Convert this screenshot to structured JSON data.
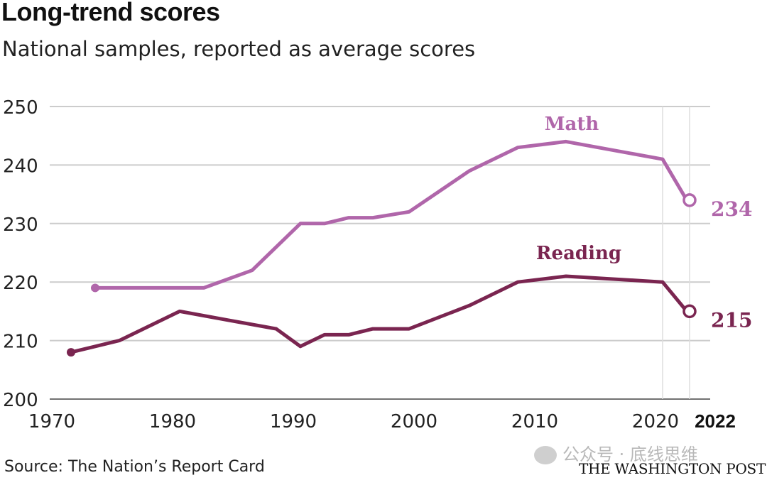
{
  "header": {
    "title": "Long-trend scores",
    "subtitle": "National samples, reported as average scores"
  },
  "footer": {
    "source": "Source: The Nation’s Report Card",
    "credit": "THE WASHINGTON POST",
    "watermark": "公众号 · 底线思维"
  },
  "colors": {
    "math": "#b066aa",
    "reading": "#7a2550",
    "grid": "#cccccc"
  },
  "chart_data": {
    "type": "line",
    "title": "Long-trend scores",
    "subtitle": "National samples, reported as average scores",
    "xlabel": "",
    "ylabel": "",
    "xlim": [
      1970,
      2023
    ],
    "ylim": [
      200,
      250
    ],
    "x_ticks": [
      1970,
      1980,
      1990,
      2000,
      2010,
      2020
    ],
    "x_tick_labels": [
      "1970",
      "1980",
      "1990",
      "2000",
      "2010",
      "2020"
    ],
    "highlight_tick": {
      "x": 2022,
      "label": "2022"
    },
    "y_ticks": [
      200,
      210,
      220,
      230,
      240,
      250
    ],
    "y_tick_labels": [
      "200",
      "210",
      "220",
      "230",
      "240",
      "250"
    ],
    "grid": true,
    "reference_lines_x": [
      2020,
      2022
    ],
    "series": [
      {
        "name": "Math",
        "color": "#b066aa",
        "points": [
          {
            "x": 1973,
            "y": 219
          },
          {
            "x": 1978,
            "y": 219
          },
          {
            "x": 1982,
            "y": 219
          },
          {
            "x": 1986,
            "y": 222
          },
          {
            "x": 1990,
            "y": 230
          },
          {
            "x": 1992,
            "y": 230
          },
          {
            "x": 1994,
            "y": 231
          },
          {
            "x": 1996,
            "y": 231
          },
          {
            "x": 1999,
            "y": 232
          },
          {
            "x": 2004,
            "y": 239
          },
          {
            "x": 2008,
            "y": 243
          },
          {
            "x": 2012,
            "y": 244
          },
          {
            "x": 2020,
            "y": 241
          },
          {
            "x": 2022,
            "y": 234
          }
        ],
        "end_label": "234"
      },
      {
        "name": "Reading",
        "color": "#7a2550",
        "points": [
          {
            "x": 1971,
            "y": 208
          },
          {
            "x": 1975,
            "y": 210
          },
          {
            "x": 1980,
            "y": 215
          },
          {
            "x": 1984,
            "y": 213.5
          },
          {
            "x": 1988,
            "y": 212
          },
          {
            "x": 1990,
            "y": 209
          },
          {
            "x": 1992,
            "y": 211
          },
          {
            "x": 1994,
            "y": 211
          },
          {
            "x": 1996,
            "y": 212
          },
          {
            "x": 1999,
            "y": 212
          },
          {
            "x": 2004,
            "y": 216
          },
          {
            "x": 2008,
            "y": 220
          },
          {
            "x": 2012,
            "y": 221
          },
          {
            "x": 2020,
            "y": 220
          },
          {
            "x": 2022,
            "y": 215
          }
        ],
        "end_label": "215"
      }
    ]
  }
}
